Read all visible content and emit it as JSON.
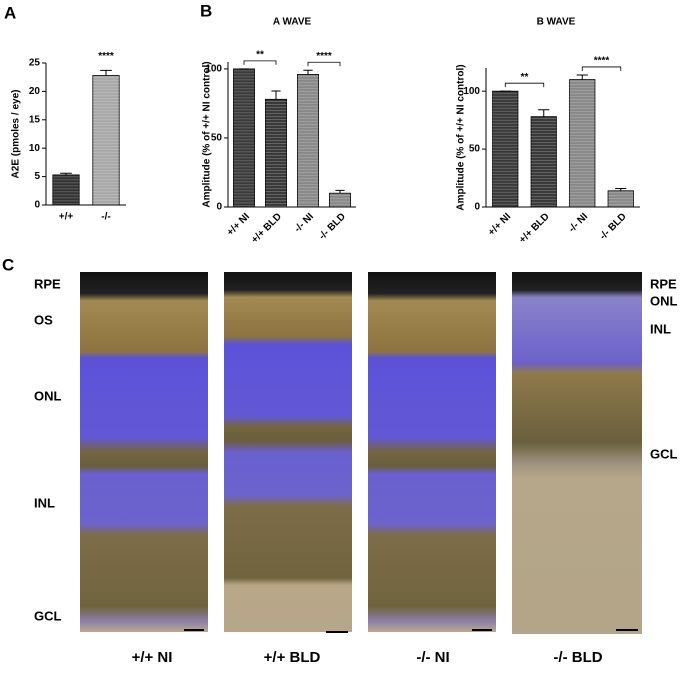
{
  "panel_labels": [
    "A",
    "B",
    "C"
  ],
  "chart_data": [
    {
      "type": "bar",
      "ylabel": "A2E (pmoles / eye)",
      "categories": [
        "+/+",
        "-/-"
      ],
      "values": [
        5.3,
        22.8
      ],
      "errors": [
        0.3,
        0.9
      ],
      "colors": [
        "#333333",
        "#aaaaaa"
      ],
      "ylim": [
        0,
        25
      ],
      "yticks": [
        0,
        5,
        10,
        15,
        20,
        25
      ],
      "annotations": [
        "****"
      ]
    },
    {
      "type": "bar",
      "title": "A WAVE",
      "ylabel": "Amplitude (% of +/+ NI control)",
      "categories": [
        "+/+ NI",
        "+/+ BLD",
        "-/- NI",
        "-/- BLD"
      ],
      "values": [
        100,
        78,
        96,
        10
      ],
      "errors": [
        0,
        6,
        3,
        2
      ],
      "colors": [
        "#3a3a3a",
        "#3a3a3a",
        "#8a8a8a",
        "#8a8a8a"
      ],
      "ylim": [
        0,
        105
      ],
      "yticks": [
        0,
        50,
        100
      ],
      "annotations": [
        "**",
        "****"
      ]
    },
    {
      "type": "bar",
      "title": "B WAVE",
      "ylabel": "Amplitude (% of +/+ NI control)",
      "categories": [
        "+/+ NI",
        "+/+ BLD",
        "-/- NI",
        "-/- BLD"
      ],
      "values": [
        100,
        78,
        110,
        14
      ],
      "errors": [
        0,
        6,
        4,
        2
      ],
      "colors": [
        "#3a3a3a",
        "#3a3a3a",
        "#8a8a8a",
        "#8a8a8a"
      ],
      "ylim": [
        0,
        120
      ],
      "yticks": [
        0,
        50,
        100
      ],
      "annotations": [
        "**",
        "****"
      ]
    }
  ],
  "histology": {
    "left_labels": [
      "RPE",
      "OS",
      "ONL",
      "INL",
      "GCL"
    ],
    "right_labels": [
      "RPE",
      "ONL",
      "INL",
      "GCL"
    ],
    "captions": [
      "+/+ NI",
      "+/+ BLD",
      "-/- NI",
      "-/- BLD"
    ]
  }
}
